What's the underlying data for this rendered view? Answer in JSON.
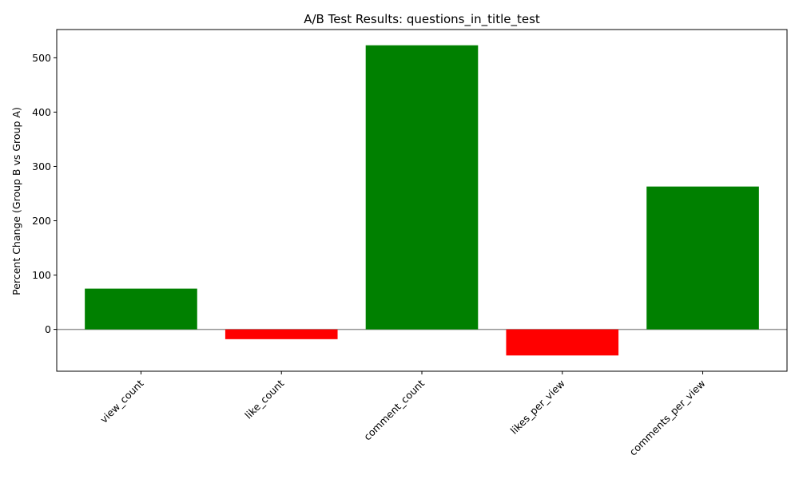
{
  "chart_data": {
    "type": "bar",
    "title": "A/B Test Results: questions_in_title_test",
    "xlabel": "",
    "ylabel": "Percent Change (Group B vs Group A)",
    "categories": [
      "view_count",
      "like_count",
      "comment_count",
      "likes_per_view",
      "comments_per_view"
    ],
    "values": [
      75,
      -18,
      523,
      -48,
      263
    ],
    "ylim": [
      -77,
      552
    ],
    "yticks": [
      0,
      100,
      200,
      300,
      400,
      500
    ],
    "yticks_text": [
      "0",
      "100",
      "200",
      "300",
      "400",
      "500"
    ],
    "grid": false,
    "legend": "none",
    "colors": {
      "positive": "#008000",
      "negative": "#ff0000",
      "zero_line": "#999999",
      "axes": "#000000"
    }
  }
}
